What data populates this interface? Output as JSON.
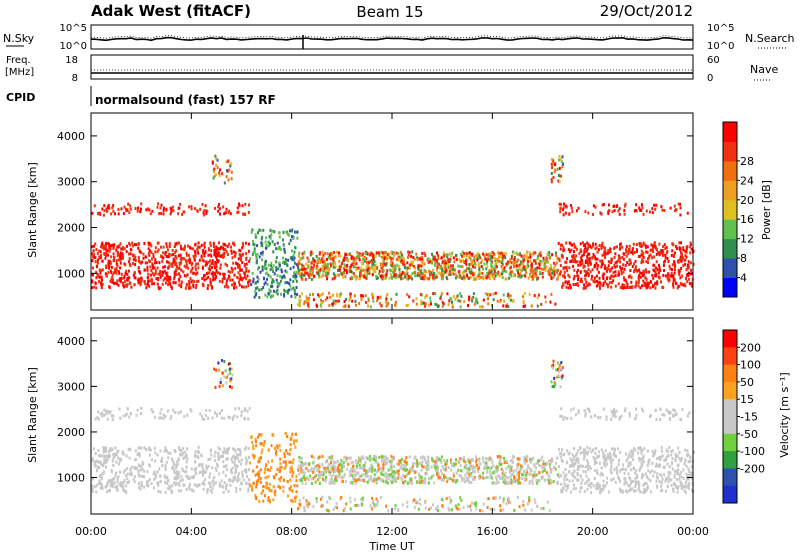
{
  "header": {
    "station": "Adak West (fitACF)",
    "beam": "Beam 15",
    "date": "29/Oct/2012"
  },
  "nsky_panel": {
    "left_label": "N.Sky",
    "right_label": "N.Search",
    "y_ticks": [
      "10^5",
      "10^0"
    ],
    "right_ticks": [
      "10^5",
      "10^0"
    ]
  },
  "freq_panel": {
    "left_label_1": "Freq.",
    "left_label_2": "[MHz]",
    "right_label": "Nave",
    "left_ticks": [
      18,
      8
    ],
    "right_ticks": [
      60,
      0
    ]
  },
  "cpid": {
    "label": "CPID",
    "program": "normalsound (fast) 157 RF"
  },
  "colors": {
    "power_scale": [
      "#0000ff",
      "#3050b0",
      "#2f8f50",
      "#5fc04f",
      "#e0c020",
      "#f0a020",
      "#f07010",
      "#f03010",
      "#ff0000"
    ],
    "velocity_scale": [
      "#ff0000",
      "#ff4010",
      "#ff8010",
      "#ffa020",
      "#c8c8c8",
      "#c8c8c8",
      "#70d040",
      "#30a040",
      "#3050b0",
      "#2030d0"
    ]
  },
  "chart_data": [
    {
      "type": "heatmap",
      "name": "power",
      "ylabel": "Slant Range [km]",
      "ylim": [
        200,
        4500
      ],
      "yticks": [
        1000,
        2000,
        3000,
        4000
      ],
      "xlim": [
        0,
        24
      ],
      "colorbar": {
        "label": "Power [dB]",
        "ticks": [
          4,
          8,
          12,
          16,
          20,
          24,
          28
        ],
        "range": [
          0,
          32
        ]
      }
    },
    {
      "type": "heatmap",
      "name": "velocity",
      "ylabel": "Slant Range [km]",
      "ylim": [
        200,
        4500
      ],
      "yticks": [
        1000,
        2000,
        3000,
        4000
      ],
      "xlim": [
        0,
        24
      ],
      "colorbar": {
        "label": "Velocity [m s⁻¹]",
        "ticks": [
          "200",
          "100",
          "50",
          "15",
          "-15",
          "-50",
          "-100",
          "-200"
        ]
      }
    }
  ],
  "x_axis": {
    "label": "Time UT",
    "ticks": [
      "00:00",
      "04:00",
      "08:00",
      "12:00",
      "16:00",
      "20:00",
      "00:00"
    ]
  }
}
